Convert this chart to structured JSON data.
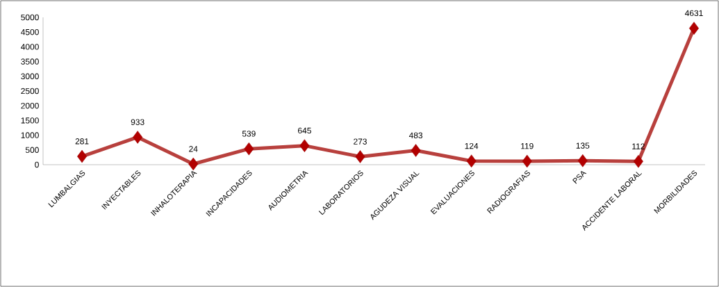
{
  "chart_data": {
    "type": "line",
    "categories": [
      "LUMBALGIAS",
      "INYECTABLES",
      "INHALOTERAPIA",
      "INCAPACIDADES",
      "AUDIOMETRIA",
      "LABORATORIOS",
      "AGUDEZA VISUAL",
      "EVALUACIONES",
      "RADIOGRAFIAS",
      "PSA",
      "ACCIDENTE LABORAL",
      "MORBILIDADES"
    ],
    "values": [
      281,
      933,
      24,
      539,
      645,
      273,
      483,
      124,
      119,
      135,
      112,
      4631
    ],
    "color": "#b8403d",
    "marker": "diamond",
    "line_style": "solid",
    "data_labels": true,
    "ylim": [
      0,
      5000
    ],
    "yticks": [
      0,
      500,
      1000,
      1500,
      2000,
      2500,
      3000,
      3500,
      4000,
      4500,
      5000
    ]
  }
}
